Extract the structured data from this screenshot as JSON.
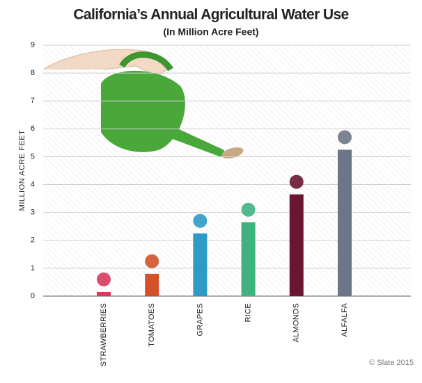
{
  "chart_data": {
    "type": "bar",
    "title": "California’s Annual Agricultural Water Use",
    "subtitle": "(In Million Acre Feet)",
    "y_label": "MILLION ACRE FEET",
    "categories": [
      "STRAWBERRIES",
      "TOMATOES",
      "GRAPES",
      "RICE",
      "ALMONDS",
      "ALFALFA"
    ],
    "values": [
      0.15,
      0.8,
      2.25,
      2.65,
      3.65,
      5.25
    ],
    "colors": [
      "#d63b5c",
      "#d4512a",
      "#2f9ac8",
      "#3fb27f",
      "#6a1631",
      "#6b7786"
    ],
    "ylim": [
      0,
      9
    ],
    "yticks": [
      0,
      1,
      2,
      3,
      4,
      5,
      6,
      7,
      8,
      9
    ],
    "grid": true,
    "credit": "© Slate 2015"
  }
}
